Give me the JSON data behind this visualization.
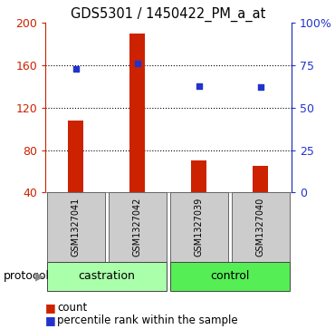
{
  "title": "GDS5301 / 1450422_PM_a_at",
  "samples": [
    "GSM1327041",
    "GSM1327042",
    "GSM1327039",
    "GSM1327040"
  ],
  "bar_values": [
    108,
    190,
    70,
    65
  ],
  "point_values_pct": [
    73,
    76,
    63,
    62
  ],
  "bar_color": "#cc2200",
  "point_color": "#2233cc",
  "ylim_left": [
    40,
    200
  ],
  "ylim_right": [
    0,
    100
  ],
  "yticks_left": [
    40,
    80,
    120,
    160,
    200
  ],
  "yticks_right": [
    0,
    25,
    50,
    75,
    100
  ],
  "ytick_labels_right": [
    "0",
    "25",
    "50",
    "75",
    "100%"
  ],
  "hlines": [
    80,
    120,
    160
  ],
  "protocol_groups": [
    {
      "label": "castration",
      "start": 0,
      "end": 1,
      "color": "#aaffaa"
    },
    {
      "label": "control",
      "start": 2,
      "end": 3,
      "color": "#55ee55"
    }
  ],
  "bar_bottom": 40,
  "left_axis_color": "#cc2200",
  "right_axis_color": "#2233cc",
  "bar_width": 0.25,
  "sample_box_color": "#cccccc",
  "bg_color": "#ffffff"
}
